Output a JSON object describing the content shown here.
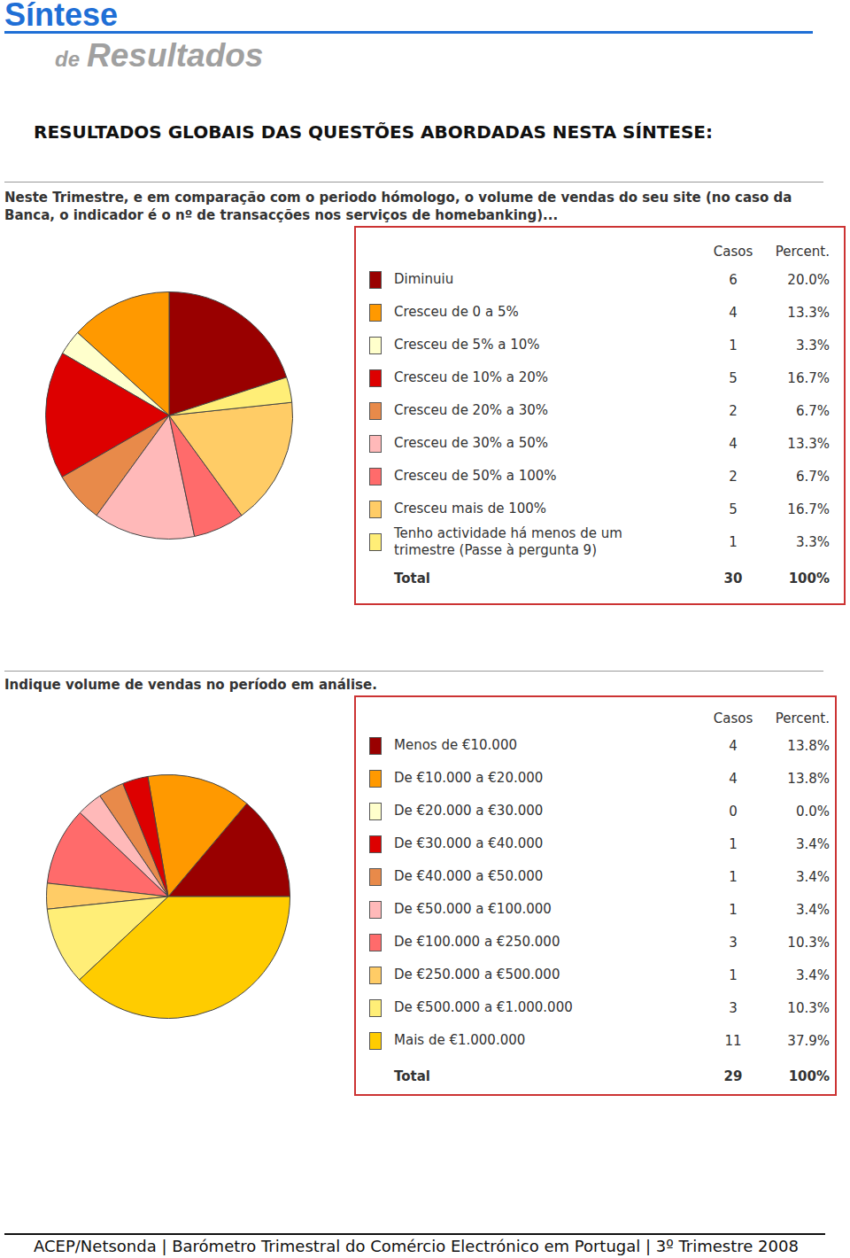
{
  "header": {
    "title": "Síntese",
    "subtitle_prefix": "de",
    "subtitle": "Resultados"
  },
  "heading": "RESULTADOS GLOBAIS DAS QUESTÕES ABORDADAS NESTA SÍNTESE:",
  "chart_data": [
    {
      "type": "pie",
      "title": "Neste Trimestre, e em comparação com o periodo hómologo, o volume de vendas do seu site (no caso da Banca, o indicador é o nº de transacções nos serviços de homebanking)...",
      "legend": "right",
      "columns": [
        "Casos",
        "Percent."
      ],
      "categories": [
        "Diminuiu",
        "Cresceu de 0 a 5%",
        "Cresceu de 5% a 10%",
        "Cresceu de 10% a 20%",
        "Cresceu de 20% a 30%",
        "Cresceu de 30% a 50%",
        "Cresceu de 50% a 100%",
        "Cresceu mais de 100%",
        "Tenho actividade há menos de um trimestre (Passe à pergunta 9)"
      ],
      "counts": [
        6,
        4,
        1,
        5,
        2,
        4,
        2,
        5,
        1
      ],
      "values": [
        20.0,
        13.3,
        3.3,
        16.7,
        6.7,
        13.3,
        6.7,
        16.7,
        3.3
      ],
      "value_labels": [
        "20.0%",
        "13.3%",
        "3.3%",
        "16.7%",
        "6.7%",
        "13.3%",
        "6.7%",
        "16.7%",
        "3.3%"
      ],
      "colors": [
        "#990000",
        "#ff9900",
        "#ffffcc",
        "#dd0000",
        "#e88a4a",
        "#ffb9b9",
        "#ff6b6b",
        "#ffcc66",
        "#ffee77"
      ],
      "total_label": "Total",
      "total_count": 30,
      "total_percent": {
        "value": 100,
        "label": "100%"
      }
    },
    {
      "type": "pie",
      "title": "Indique volume de vendas no período em análise.",
      "legend": "right",
      "columns": [
        "Casos",
        "Percent."
      ],
      "categories": [
        "Menos de €10.000",
        "De €10.000 a €20.000",
        "De €20.000 a €30.000",
        "De €30.000 a €40.000",
        "De €40.000 a €50.000",
        "De €50.000 a €100.000",
        "De €100.000 a €250.000",
        "De €250.000 a €500.000",
        "De €500.000 a €1.000.000",
        "Mais de €1.000.000"
      ],
      "counts": [
        4,
        4,
        0,
        1,
        1,
        1,
        3,
        1,
        3,
        11
      ],
      "values": [
        13.8,
        13.8,
        0.0,
        3.4,
        3.4,
        3.4,
        10.3,
        3.4,
        10.3,
        37.9
      ],
      "value_labels": [
        "13.8%",
        "13.8%",
        "0.0%",
        "3.4%",
        "3.4%",
        "3.4%",
        "10.3%",
        "3.4%",
        "10.3%",
        "37.9%"
      ],
      "colors": [
        "#990000",
        "#ff9900",
        "#ffffcc",
        "#dd0000",
        "#e88a4a",
        "#ffb9b9",
        "#ff6b6b",
        "#ffcc66",
        "#ffee77",
        "#ffcc00"
      ],
      "total_label": "Total",
      "total_count": 29,
      "total_percent": {
        "value": 100,
        "label": "100%"
      }
    }
  ],
  "footer": "ACEP/Netsonda | Barómetro Trimestral do Comércio Electrónico em Portugal | 3º Trimestre 2008"
}
